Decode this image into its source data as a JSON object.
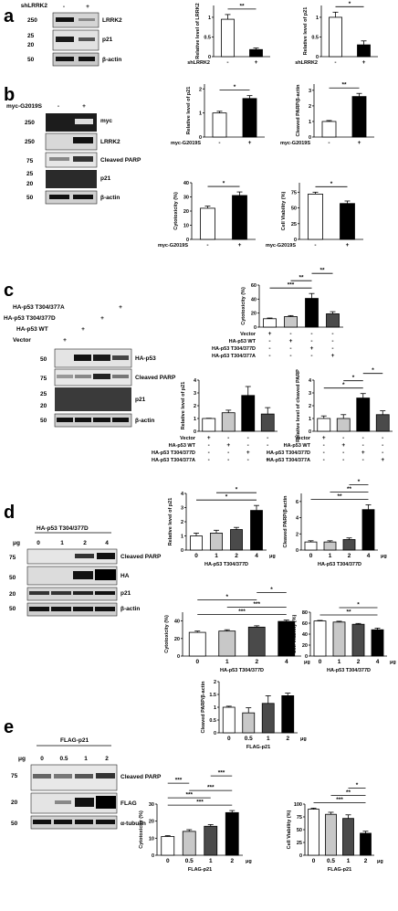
{
  "panels": {
    "a": {
      "label": "a",
      "blot": {
        "treatment_label": "shLRRK2",
        "lane_signs": [
          "-",
          "+"
        ],
        "mw_markers": [
          {
            "kda": "250",
            "band": "LRRK2"
          },
          {
            "kda": "25",
            "band": "p21"
          },
          {
            "kda": "20",
            "band": ""
          },
          {
            "kda": "50",
            "band": "β-actin"
          }
        ]
      }
    },
    "b": {
      "label": "b",
      "blot": {
        "treatment_label": "myc-G2019S",
        "lane_signs": [
          "-",
          "+"
        ],
        "mw_markers": [
          {
            "kda": "250",
            "band": "myc"
          },
          {
            "kda": "250",
            "band": "LRRK2"
          },
          {
            "kda": "75",
            "band": "Cleaved PARP"
          },
          {
            "kda": "25",
            "band": "p21"
          },
          {
            "kda": "20",
            "band": ""
          },
          {
            "kda": "50",
            "band": "β-actin"
          }
        ]
      }
    },
    "c": {
      "label": "c",
      "blot": {
        "group_labels": [
          "HA-p53 T304/377A",
          "HA-p53 T304/377D",
          "HA-p53 WT",
          "Vector"
        ],
        "mw_markers": [
          {
            "kda": "50",
            "band": "HA-p53"
          },
          {
            "kda": "75",
            "band": "Cleaved PARP"
          },
          {
            "kda": "25",
            "band": "p21"
          },
          {
            "kda": "20",
            "band": ""
          },
          {
            "kda": "50",
            "band": "β-actin"
          }
        ]
      }
    },
    "d": {
      "label": "d",
      "blot": {
        "title": "HA-p53 T304/377D",
        "unit": "μg",
        "lane_values": [
          "0",
          "1",
          "2",
          "4"
        ],
        "mw_markers": [
          {
            "kda": "75",
            "band": "Cleaved PARP"
          },
          {
            "kda": "50",
            "band": "HA"
          },
          {
            "kda": "20",
            "band": "p21"
          },
          {
            "kda": "50",
            "band": "β-actin"
          }
        ]
      }
    },
    "e": {
      "label": "e",
      "blot": {
        "title": "FLAG-p21",
        "unit": "μg",
        "lane_values": [
          "0",
          "0.5",
          "1",
          "2"
        ],
        "mw_markers": [
          {
            "kda": "75",
            "band": "Cleaved PARP"
          },
          {
            "kda": "20",
            "band": "FLAG"
          },
          {
            "kda": "50",
            "band": "α-tubulin"
          }
        ]
      }
    }
  },
  "colors": {
    "white": "#ffffff",
    "light_gray": "#c8c8c8",
    "dark_gray": "#4a4a4a",
    "gray": "#777777",
    "black": "#000000"
  },
  "chart_data": [
    {
      "id": "a1",
      "type": "bar",
      "ylabel": "Relative level of LRRK2",
      "xlabel": "shLRRK2",
      "categories": [
        "-",
        "+"
      ],
      "values": [
        0.95,
        0.18
      ],
      "errors": [
        0.12,
        0.04
      ],
      "fills": [
        "white",
        "black"
      ],
      "ylim": [
        0,
        1.3
      ],
      "sig": [
        {
          "from": 0,
          "to": 1,
          "label": "**"
        }
      ]
    },
    {
      "id": "a2",
      "type": "bar",
      "ylabel": "Relative level of p21",
      "xlabel": "shLRRK2",
      "categories": [
        "-",
        "+"
      ],
      "values": [
        1.0,
        0.3
      ],
      "errors": [
        0.13,
        0.1
      ],
      "fills": [
        "white",
        "black"
      ],
      "ylim": [
        0,
        1.3
      ],
      "sig": [
        {
          "from": 0,
          "to": 1,
          "label": "*"
        }
      ]
    },
    {
      "id": "b1",
      "type": "bar",
      "ylabel": "Relative level of p21",
      "xlabel": "myc-G2019S",
      "categories": [
        "-",
        "+"
      ],
      "values": [
        1.0,
        1.6
      ],
      "errors": [
        0.07,
        0.12
      ],
      "fills": [
        "white",
        "black"
      ],
      "ylim": [
        0,
        2.2
      ],
      "sig": [
        {
          "from": 0,
          "to": 1,
          "label": "*"
        }
      ]
    },
    {
      "id": "b2",
      "type": "bar",
      "ylabel": "Cleaved PARP/β-actin",
      "xlabel": "myc-G2019S",
      "categories": [
        "-",
        "+"
      ],
      "values": [
        1.0,
        2.6
      ],
      "errors": [
        0.06,
        0.2
      ],
      "fills": [
        "white",
        "black"
      ],
      "ylim": [
        0,
        3.4
      ],
      "sig": [
        {
          "from": 0,
          "to": 1,
          "label": "**"
        }
      ]
    },
    {
      "id": "b3",
      "type": "bar",
      "ylabel": "Cytotoxicity (%)",
      "xlabel": "myc-G2019S",
      "categories": [
        "-",
        "+"
      ],
      "values": [
        22,
        31
      ],
      "errors": [
        1.5,
        2.5
      ],
      "fills": [
        "white",
        "black"
      ],
      "ylim": [
        0,
        40
      ],
      "sig": [
        {
          "from": 0,
          "to": 1,
          "label": "*"
        }
      ]
    },
    {
      "id": "b4",
      "type": "bar",
      "ylabel": "Cell Viability (%)",
      "xlabel": "myc-G2019S",
      "categories": [
        "-",
        "+"
      ],
      "values": [
        72,
        57
      ],
      "errors": [
        3,
        4
      ],
      "fills": [
        "white",
        "black"
      ],
      "ylim": [
        0,
        90
      ],
      "sig": [
        {
          "from": 0,
          "to": 1,
          "label": "*"
        }
      ]
    },
    {
      "id": "c1",
      "type": "bar",
      "ylabel": "Cytotoxicity (%)",
      "row_labels": [
        "Vector",
        "HA-p53 WT",
        "HA-p53 T304/377D",
        "HA-p53 T304/377A"
      ],
      "signs": [
        [
          "+",
          "-",
          "-",
          "-"
        ],
        [
          "-",
          "+",
          "-",
          "-"
        ],
        [
          "-",
          "-",
          "+",
          "-"
        ],
        [
          "-",
          "-",
          "-",
          "+"
        ]
      ],
      "values": [
        12,
        15,
        41,
        19
      ],
      "errors": [
        1,
        1.5,
        7,
        3
      ],
      "fills": [
        "white",
        "light_gray",
        "black",
        "dark_gray"
      ],
      "ylim": [
        0,
        60
      ],
      "sig": [
        {
          "from": 0,
          "to": 2,
          "label": "***"
        },
        {
          "from": 1,
          "to": 2,
          "label": "**"
        },
        {
          "from": 2,
          "to": 3,
          "label": "**"
        }
      ]
    },
    {
      "id": "c2",
      "type": "bar",
      "ylabel": "Relative level of p21",
      "row_labels": [
        "Vector",
        "HA-p53 WT",
        "HA-p53 T304/377D",
        "HA-p53 T304/377A"
      ],
      "signs": [
        [
          "+",
          "-",
          "-",
          "-"
        ],
        [
          "-",
          "+",
          "-",
          "-"
        ],
        [
          "-",
          "-",
          "+",
          "-"
        ],
        [
          "-",
          "-",
          "-",
          "+"
        ]
      ],
      "values": [
        1.0,
        1.45,
        2.8,
        1.35
      ],
      "errors": [
        0.02,
        0.2,
        0.7,
        0.5
      ],
      "fills": [
        "white",
        "light_gray",
        "black",
        "dark_gray"
      ],
      "ylim": [
        0,
        4
      ],
      "sig": []
    },
    {
      "id": "c3",
      "type": "bar",
      "ylabel": "Relative level of cleaved PARP",
      "row_labels": [
        "Vector",
        "HA-p53 WT",
        "HA-p53 T304/377D",
        "HA-p53 T304/377A"
      ],
      "signs": [
        [
          "+",
          "-",
          "-",
          "-"
        ],
        [
          "-",
          "+",
          "-",
          "-"
        ],
        [
          "-",
          "-",
          "+",
          "-"
        ],
        [
          "-",
          "-",
          "-",
          "+"
        ]
      ],
      "values": [
        1.0,
        1.0,
        2.6,
        1.3
      ],
      "errors": [
        0.2,
        0.3,
        0.35,
        0.3
      ],
      "fills": [
        "white",
        "light_gray",
        "black",
        "dark_gray"
      ],
      "ylim": [
        0,
        4
      ],
      "sig": [
        {
          "from": 0,
          "to": 2,
          "label": "*"
        },
        {
          "from": 1,
          "to": 2,
          "label": "*"
        },
        {
          "from": 2,
          "to": 3,
          "label": "*"
        }
      ]
    },
    {
      "id": "d1",
      "type": "bar",
      "ylabel": "Relative level of p21",
      "xlabel": "HA-p53 T304/377D",
      "unit": "μg",
      "categories": [
        "0",
        "1",
        "2",
        "4"
      ],
      "values": [
        1.0,
        1.2,
        1.45,
        2.8
      ],
      "errors": [
        0.2,
        0.2,
        0.15,
        0.35
      ],
      "fills": [
        "white",
        "light_gray",
        "dark_gray",
        "black"
      ],
      "ylim": [
        0,
        4
      ],
      "sig": [
        {
          "from": 0,
          "to": 3,
          "label": "*"
        },
        {
          "from": 1,
          "to": 3,
          "label": "*"
        }
      ]
    },
    {
      "id": "d2",
      "type": "bar",
      "ylabel": "Cleaved PARP/β-actin",
      "xlabel": "HA-p53 T304/377D",
      "unit": "μg",
      "categories": [
        "0",
        "1",
        "2",
        "4"
      ],
      "values": [
        1.0,
        1.0,
        1.3,
        5.0
      ],
      "errors": [
        0.15,
        0.15,
        0.2,
        0.6
      ],
      "fills": [
        "white",
        "light_gray",
        "dark_gray",
        "black"
      ],
      "ylim": [
        0,
        7
      ],
      "sig": [
        {
          "from": 0,
          "to": 3,
          "label": "**"
        },
        {
          "from": 1,
          "to": 3,
          "label": "**"
        },
        {
          "from": 2,
          "to": 3,
          "label": "*"
        }
      ]
    },
    {
      "id": "d3",
      "type": "bar",
      "ylabel": "Cytotoxicity (%)",
      "xlabel": "HA-p53 T304/377D",
      "unit": "μg",
      "categories": [
        "0",
        "1",
        "2",
        "4"
      ],
      "values": [
        27,
        28.5,
        33,
        39.5
      ],
      "errors": [
        1.5,
        1.5,
        1.5,
        1.5
      ],
      "fills": [
        "white",
        "light_gray",
        "dark_gray",
        "black"
      ],
      "ylim": [
        0,
        50
      ],
      "sig": [
        {
          "from": 0,
          "to": 3,
          "label": "***"
        },
        {
          "from": 1,
          "to": 3,
          "label": "***"
        },
        {
          "from": 0,
          "to": 2,
          "label": "*"
        },
        {
          "from": 2,
          "to": 3,
          "label": "*"
        }
      ]
    },
    {
      "id": "d4",
      "type": "bar",
      "ylabel": "Cell Viability (%)",
      "xlabel": "HA-p53 T304/377D",
      "unit": "μg",
      "categories": [
        "0",
        "1",
        "2",
        "4"
      ],
      "values": [
        64,
        62,
        58,
        48
      ],
      "errors": [
        1,
        1.5,
        1.5,
        3
      ],
      "fills": [
        "white",
        "light_gray",
        "dark_gray",
        "black"
      ],
      "ylim": [
        0,
        80
      ],
      "sig": [
        {
          "from": 0,
          "to": 3,
          "label": "**"
        },
        {
          "from": 1,
          "to": 3,
          "label": "*"
        }
      ]
    },
    {
      "id": "e1",
      "type": "bar",
      "ylabel": "Cleaved PARP/β-actin",
      "xlabel": "FLAG-p21",
      "unit": "μg",
      "categories": [
        "0",
        "0.5",
        "1",
        "2"
      ],
      "values": [
        1.0,
        0.78,
        1.15,
        1.45
      ],
      "errors": [
        0.04,
        0.2,
        0.3,
        0.1
      ],
      "fills": [
        "white",
        "light_gray",
        "dark_gray",
        "black"
      ],
      "ylim": [
        0,
        2
      ],
      "sig": []
    },
    {
      "id": "e2",
      "type": "bar",
      "ylabel": "Cytotoxicity (%)",
      "xlabel": "FLAG-p21",
      "unit": "μg",
      "categories": [
        "0",
        "0.5",
        "1",
        "2"
      ],
      "values": [
        11,
        14,
        17,
        25
      ],
      "errors": [
        0.5,
        1,
        1,
        1.2
      ],
      "fills": [
        "white",
        "light_gray",
        "dark_gray",
        "black"
      ],
      "ylim": [
        0,
        30
      ],
      "sig": [
        {
          "from": 0,
          "to": 3,
          "label": "***"
        },
        {
          "from": 0,
          "to": 2,
          "label": "***"
        },
        {
          "from": 1,
          "to": 3,
          "label": "***"
        },
        {
          "from": 0,
          "to": 1,
          "label": "***"
        },
        {
          "from": 2,
          "to": 3,
          "label": "***"
        }
      ]
    },
    {
      "id": "e3",
      "type": "bar",
      "ylabel": "Cell Viability (%)",
      "xlabel": "FLAG-p21",
      "unit": "μg",
      "categories": [
        "0",
        "0.5",
        "1",
        "2"
      ],
      "values": [
        90,
        80,
        72,
        43
      ],
      "errors": [
        2,
        4,
        7,
        4
      ],
      "fills": [
        "white",
        "light_gray",
        "dark_gray",
        "black"
      ],
      "ylim": [
        0,
        100
      ],
      "sig": [
        {
          "from": 0,
          "to": 3,
          "label": "***"
        },
        {
          "from": 1,
          "to": 3,
          "label": "**"
        },
        {
          "from": 2,
          "to": 3,
          "label": "*"
        }
      ]
    }
  ]
}
